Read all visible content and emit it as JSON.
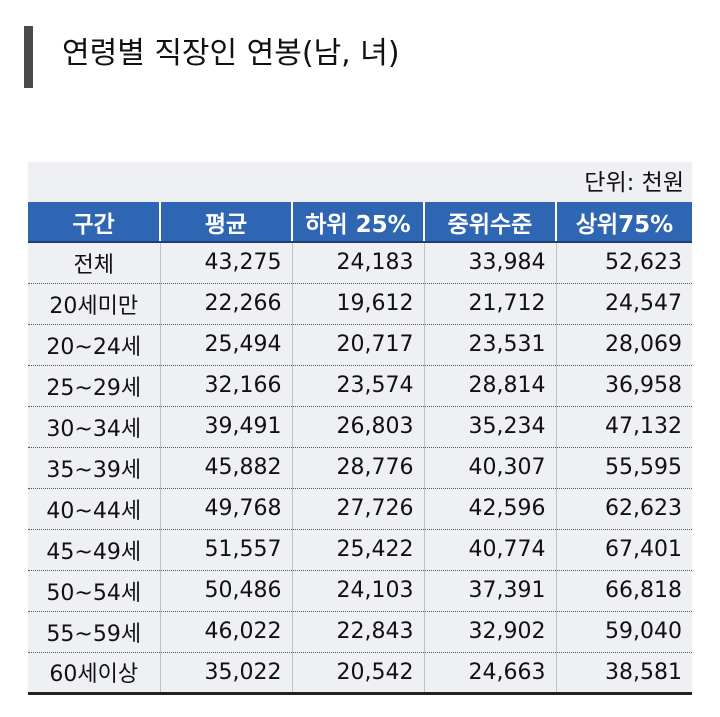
{
  "title": "연령별 직장인 연봉(남, 녀)",
  "unit": "단위: 천원",
  "table": {
    "headers": [
      "구간",
      "평균",
      "하위 25%",
      "중위수준",
      "상위75%"
    ],
    "rows": [
      [
        "전체",
        "43,275",
        "24,183",
        "33,984",
        "52,623"
      ],
      [
        "20세미만",
        "22,266",
        "19,612",
        "21,712",
        "24,547"
      ],
      [
        "20~24세",
        "25,494",
        "20,717",
        "23,531",
        "28,069"
      ],
      [
        "25~29세",
        "32,166",
        "23,574",
        "28,814",
        "36,958"
      ],
      [
        "30~34세",
        "39,491",
        "26,803",
        "35,234",
        "47,132"
      ],
      [
        "35~39세",
        "45,882",
        "28,776",
        "40,307",
        "55,595"
      ],
      [
        "40~44세",
        "49,768",
        "27,726",
        "42,596",
        "62,623"
      ],
      [
        "45~49세",
        "51,557",
        "25,422",
        "40,774",
        "67,401"
      ],
      [
        "50~54세",
        "50,486",
        "24,103",
        "37,391",
        "66,818"
      ],
      [
        "55~59세",
        "46,022",
        "22,843",
        "32,902",
        "59,040"
      ],
      [
        "60세이상",
        "35,022",
        "20,542",
        "24,663",
        "38,581"
      ]
    ]
  }
}
